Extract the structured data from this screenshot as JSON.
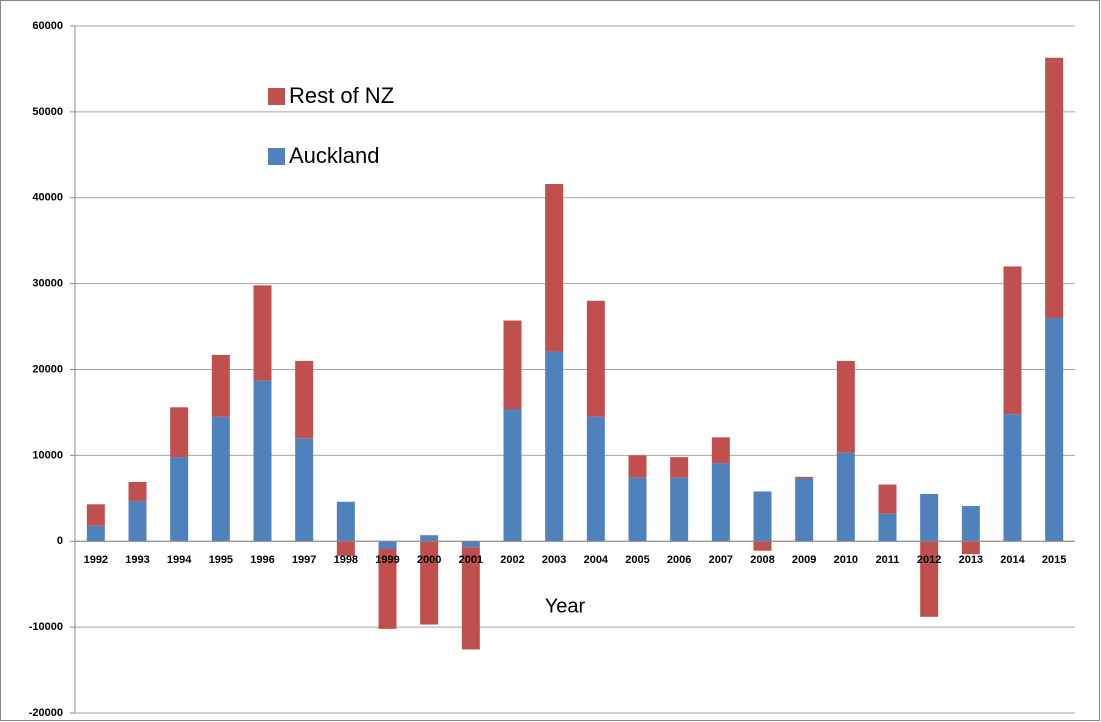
{
  "chart_data": {
    "type": "stacked-bar",
    "x_label": "Year",
    "categories": [
      "1992",
      "1993",
      "1994",
      "1995",
      "1996",
      "1997",
      "1998",
      "1999",
      "2000",
      "2001",
      "2002",
      "2003",
      "2004",
      "2005",
      "2006",
      "2007",
      "2008",
      "2009",
      "2010",
      "2011",
      "2012",
      "2013",
      "2014",
      "2015"
    ],
    "series": [
      {
        "name": "Auckland",
        "color": "#4f81bd",
        "values": [
          1800,
          4700,
          9800,
          14500,
          18700,
          12000,
          4600,
          -900,
          700,
          -700,
          15400,
          22100,
          14500,
          7400,
          7400,
          9100,
          5800,
          7300,
          10300,
          3200,
          5500,
          4100,
          14800,
          26000
        ]
      },
      {
        "name": "Rest of NZ",
        "color": "#c0504d",
        "values": [
          2500,
          2200,
          5800,
          7200,
          11100,
          9000,
          -1700,
          -9300,
          -9700,
          -11900,
          10300,
          19500,
          13500,
          2600,
          2400,
          3000,
          -1100,
          200,
          10700,
          3400,
          -8800,
          -1500,
          17200,
          30300
        ]
      }
    ],
    "ylim": [
      -20000,
      60000
    ],
    "yticks": [
      -20000,
      -10000,
      0,
      10000,
      20000,
      30000,
      40000,
      50000,
      60000
    ],
    "grid": true,
    "legend": "upper left"
  }
}
